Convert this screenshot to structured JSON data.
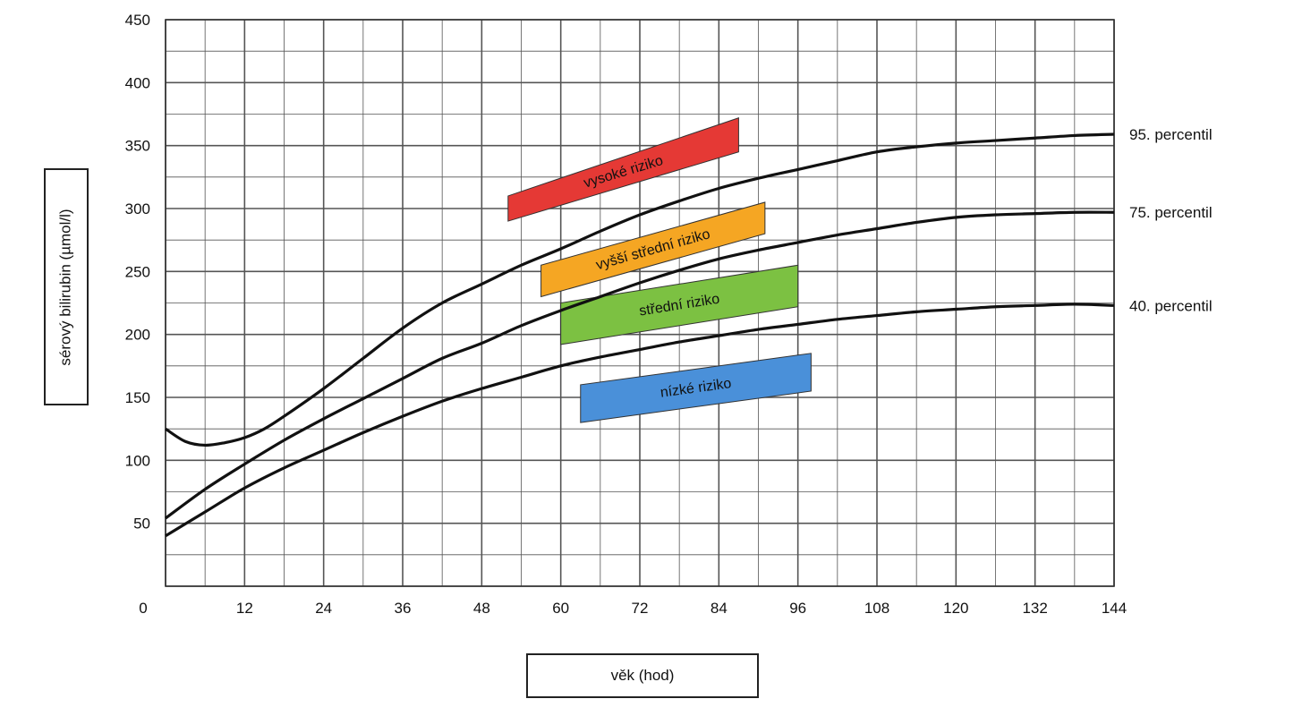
{
  "chart_data": {
    "type": "line",
    "xlabel": "věk (hod)",
    "ylabel": "sérový bilirubin (µmol/l)",
    "xlim": [
      0,
      144
    ],
    "ylim": [
      0,
      450
    ],
    "x_ticks": [
      0,
      12,
      24,
      36,
      48,
      60,
      72,
      84,
      96,
      108,
      120,
      132,
      144
    ],
    "y_ticks": [
      50,
      100,
      150,
      200,
      250,
      300,
      350,
      400,
      450
    ],
    "y_origin_label": "0",
    "grid": true,
    "grid_step_x": 6,
    "grid_step_y": 25,
    "series": [
      {
        "name": "95. percentil",
        "x": [
          0,
          3,
          6,
          9,
          12,
          15,
          18,
          24,
          30,
          36,
          42,
          48,
          54,
          60,
          66,
          72,
          78,
          84,
          90,
          96,
          102,
          108,
          114,
          120,
          126,
          132,
          138,
          144
        ],
        "y": [
          125,
          115,
          112,
          114,
          118,
          125,
          135,
          157,
          181,
          205,
          225,
          240,
          255,
          268,
          282,
          295,
          306,
          316,
          324,
          331,
          338,
          345,
          349,
          352,
          354,
          356,
          358,
          359
        ]
      },
      {
        "name": "75. percentil",
        "x": [
          0,
          6,
          12,
          18,
          24,
          30,
          36,
          42,
          48,
          54,
          60,
          66,
          72,
          78,
          84,
          90,
          96,
          102,
          108,
          114,
          120,
          126,
          132,
          138,
          144
        ],
        "y": [
          54,
          77,
          97,
          116,
          133,
          149,
          165,
          181,
          193,
          207,
          219,
          230,
          241,
          251,
          260,
          267,
          273,
          279,
          284,
          289,
          293,
          295,
          296,
          297,
          297
        ]
      },
      {
        "name": "40. percentil",
        "x": [
          0,
          6,
          12,
          18,
          24,
          30,
          36,
          42,
          48,
          54,
          60,
          66,
          72,
          78,
          84,
          90,
          96,
          102,
          108,
          114,
          120,
          126,
          132,
          138,
          144
        ],
        "y": [
          40,
          59,
          78,
          94,
          108,
          122,
          135,
          147,
          157,
          166,
          175,
          182,
          188,
          194,
          199,
          204,
          208,
          212,
          215,
          218,
          220,
          222,
          223,
          224,
          223
        ]
      }
    ],
    "annotations": [
      {
        "label": "vysoké riziko",
        "color": "#e53935",
        "x_from": 52,
        "x_to": 87,
        "y_from_start": 290,
        "y_from_end": 345,
        "y_to_start": 310,
        "y_to_end": 372
      },
      {
        "label": "vyšší střední riziko",
        "color": "#f5a623",
        "x_from": 57,
        "x_to": 91,
        "y_from_start": 230,
        "y_from_end": 280,
        "y_to_start": 255,
        "y_to_end": 305
      },
      {
        "label": "střední riziko",
        "color": "#7cc142",
        "x_from": 60,
        "x_to": 96,
        "y_from_start": 192,
        "y_from_end": 222,
        "y_to_start": 225,
        "y_to_end": 255
      },
      {
        "label": "nízké riziko",
        "color": "#4a90d9",
        "x_from": 63,
        "x_to": 98,
        "y_from_start": 130,
        "y_from_end": 155,
        "y_to_start": 160,
        "y_to_end": 185
      }
    ]
  }
}
